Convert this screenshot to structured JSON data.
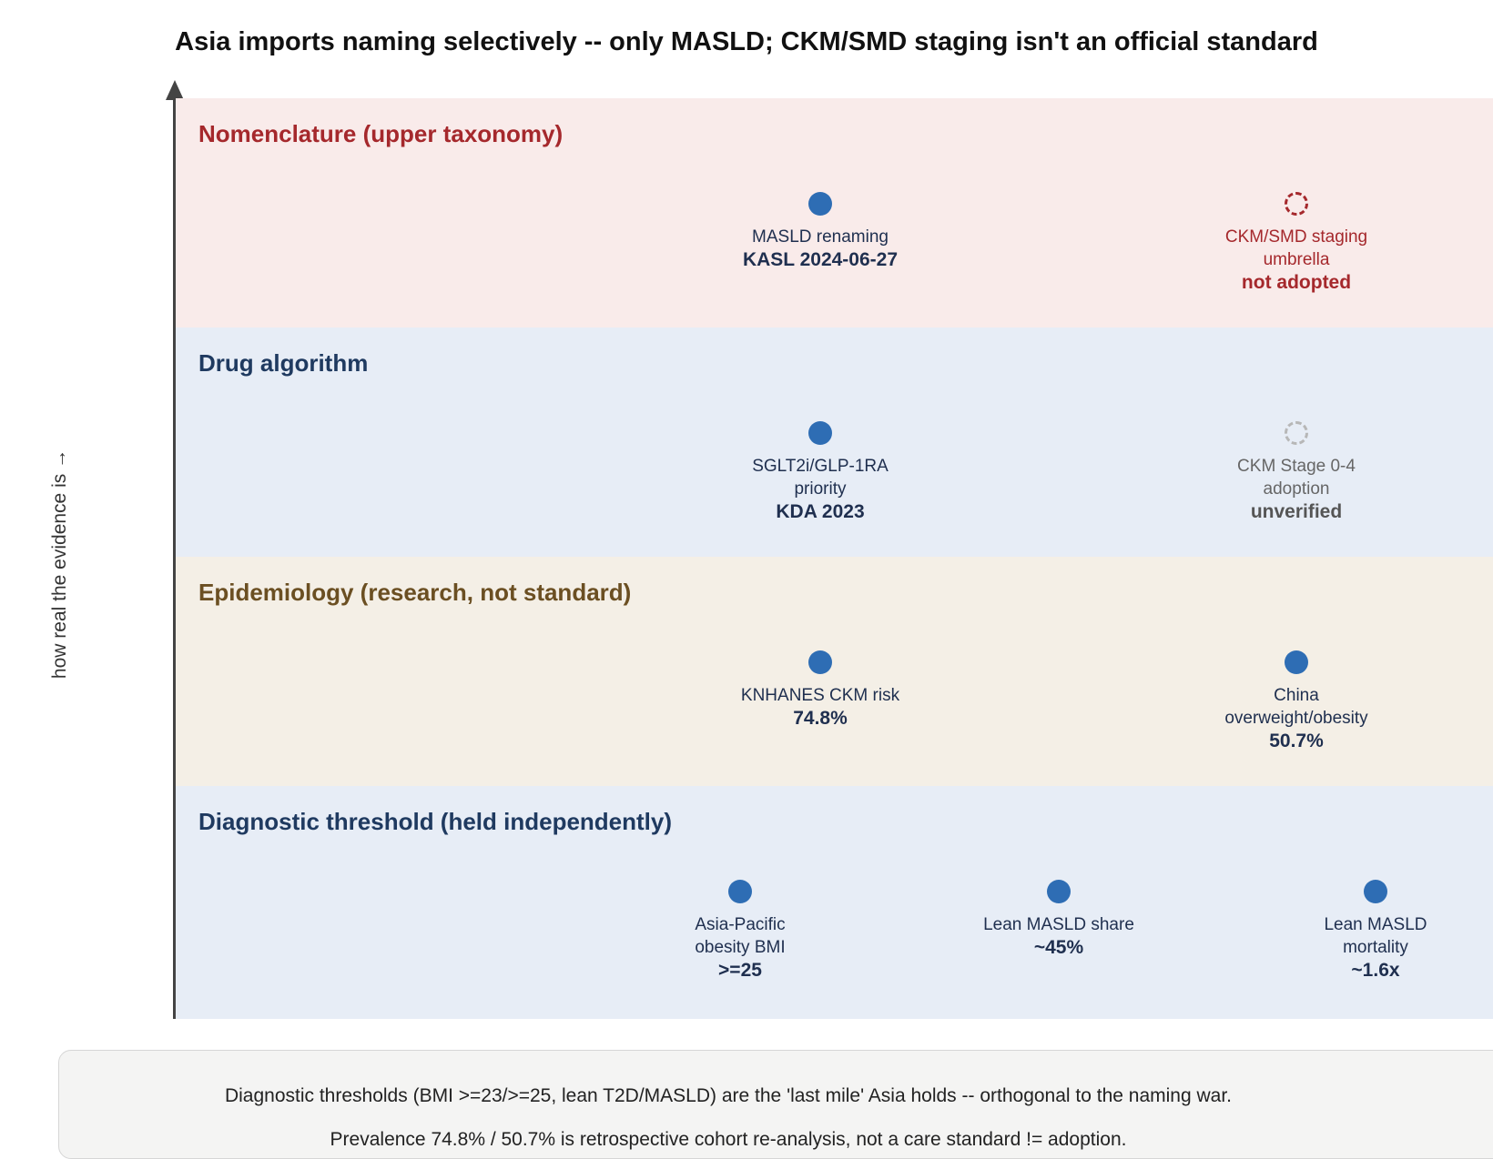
{
  "title": "Asia imports naming selectively -- only MASLD; CKM/SMD staging isn't an official standard",
  "y_axis_label": "how real the evidence is →",
  "colors": {
    "nomenclature_bg": "#f9ebea",
    "nomenclature_title": "#a5282c",
    "drug_bg": "#e7edf6",
    "drug_title": "#1f3a60",
    "epi_bg": "#f4efe6",
    "epi_title": "#6b4f22",
    "diag_bg": "#e7edf6",
    "diag_title": "#1f3a60",
    "dot": "#2e6db4"
  },
  "bands": [
    {
      "title": "Nomenclature (upper taxonomy)",
      "nodes": [
        {
          "label": "MASLD renaming",
          "value": "KASL 2024-06-27",
          "status": "confirmed"
        },
        {
          "label": "CKM/SMD staging umbrella",
          "value": "not adopted",
          "status": "not-adopted"
        }
      ]
    },
    {
      "title": "Drug algorithm",
      "nodes": [
        {
          "label": "SGLT2i/GLP-1RA priority",
          "value": "KDA 2023",
          "status": "confirmed"
        },
        {
          "label": "CKM Stage 0-4 adoption",
          "value": "unverified",
          "status": "unverified"
        }
      ]
    },
    {
      "title": "Epidemiology (research, not standard)",
      "nodes": [
        {
          "label": "KNHANES CKM risk",
          "value": "74.8%",
          "status": "confirmed"
        },
        {
          "label": "China overweight/obesity",
          "value": "50.7%",
          "status": "confirmed"
        }
      ]
    },
    {
      "title": "Diagnostic threshold (held independently)",
      "nodes": [
        {
          "label": "Asia-Pacific obesity BMI",
          "value": ">=25",
          "status": "confirmed"
        },
        {
          "label": "Lean MASLD share",
          "value": "~45%",
          "status": "confirmed"
        },
        {
          "label": "Lean MASLD mortality",
          "value": "~1.6x",
          "status": "confirmed"
        }
      ]
    }
  ],
  "note": {
    "line1": "Diagnostic thresholds (BMI >=23/>=25, lean T2D/MASLD) are the 'last mile' Asia holds -- orthogonal to the naming war.",
    "line2": "Prevalence 74.8% / 50.7% is retrospective cohort re-analysis, not a care standard != adoption."
  }
}
